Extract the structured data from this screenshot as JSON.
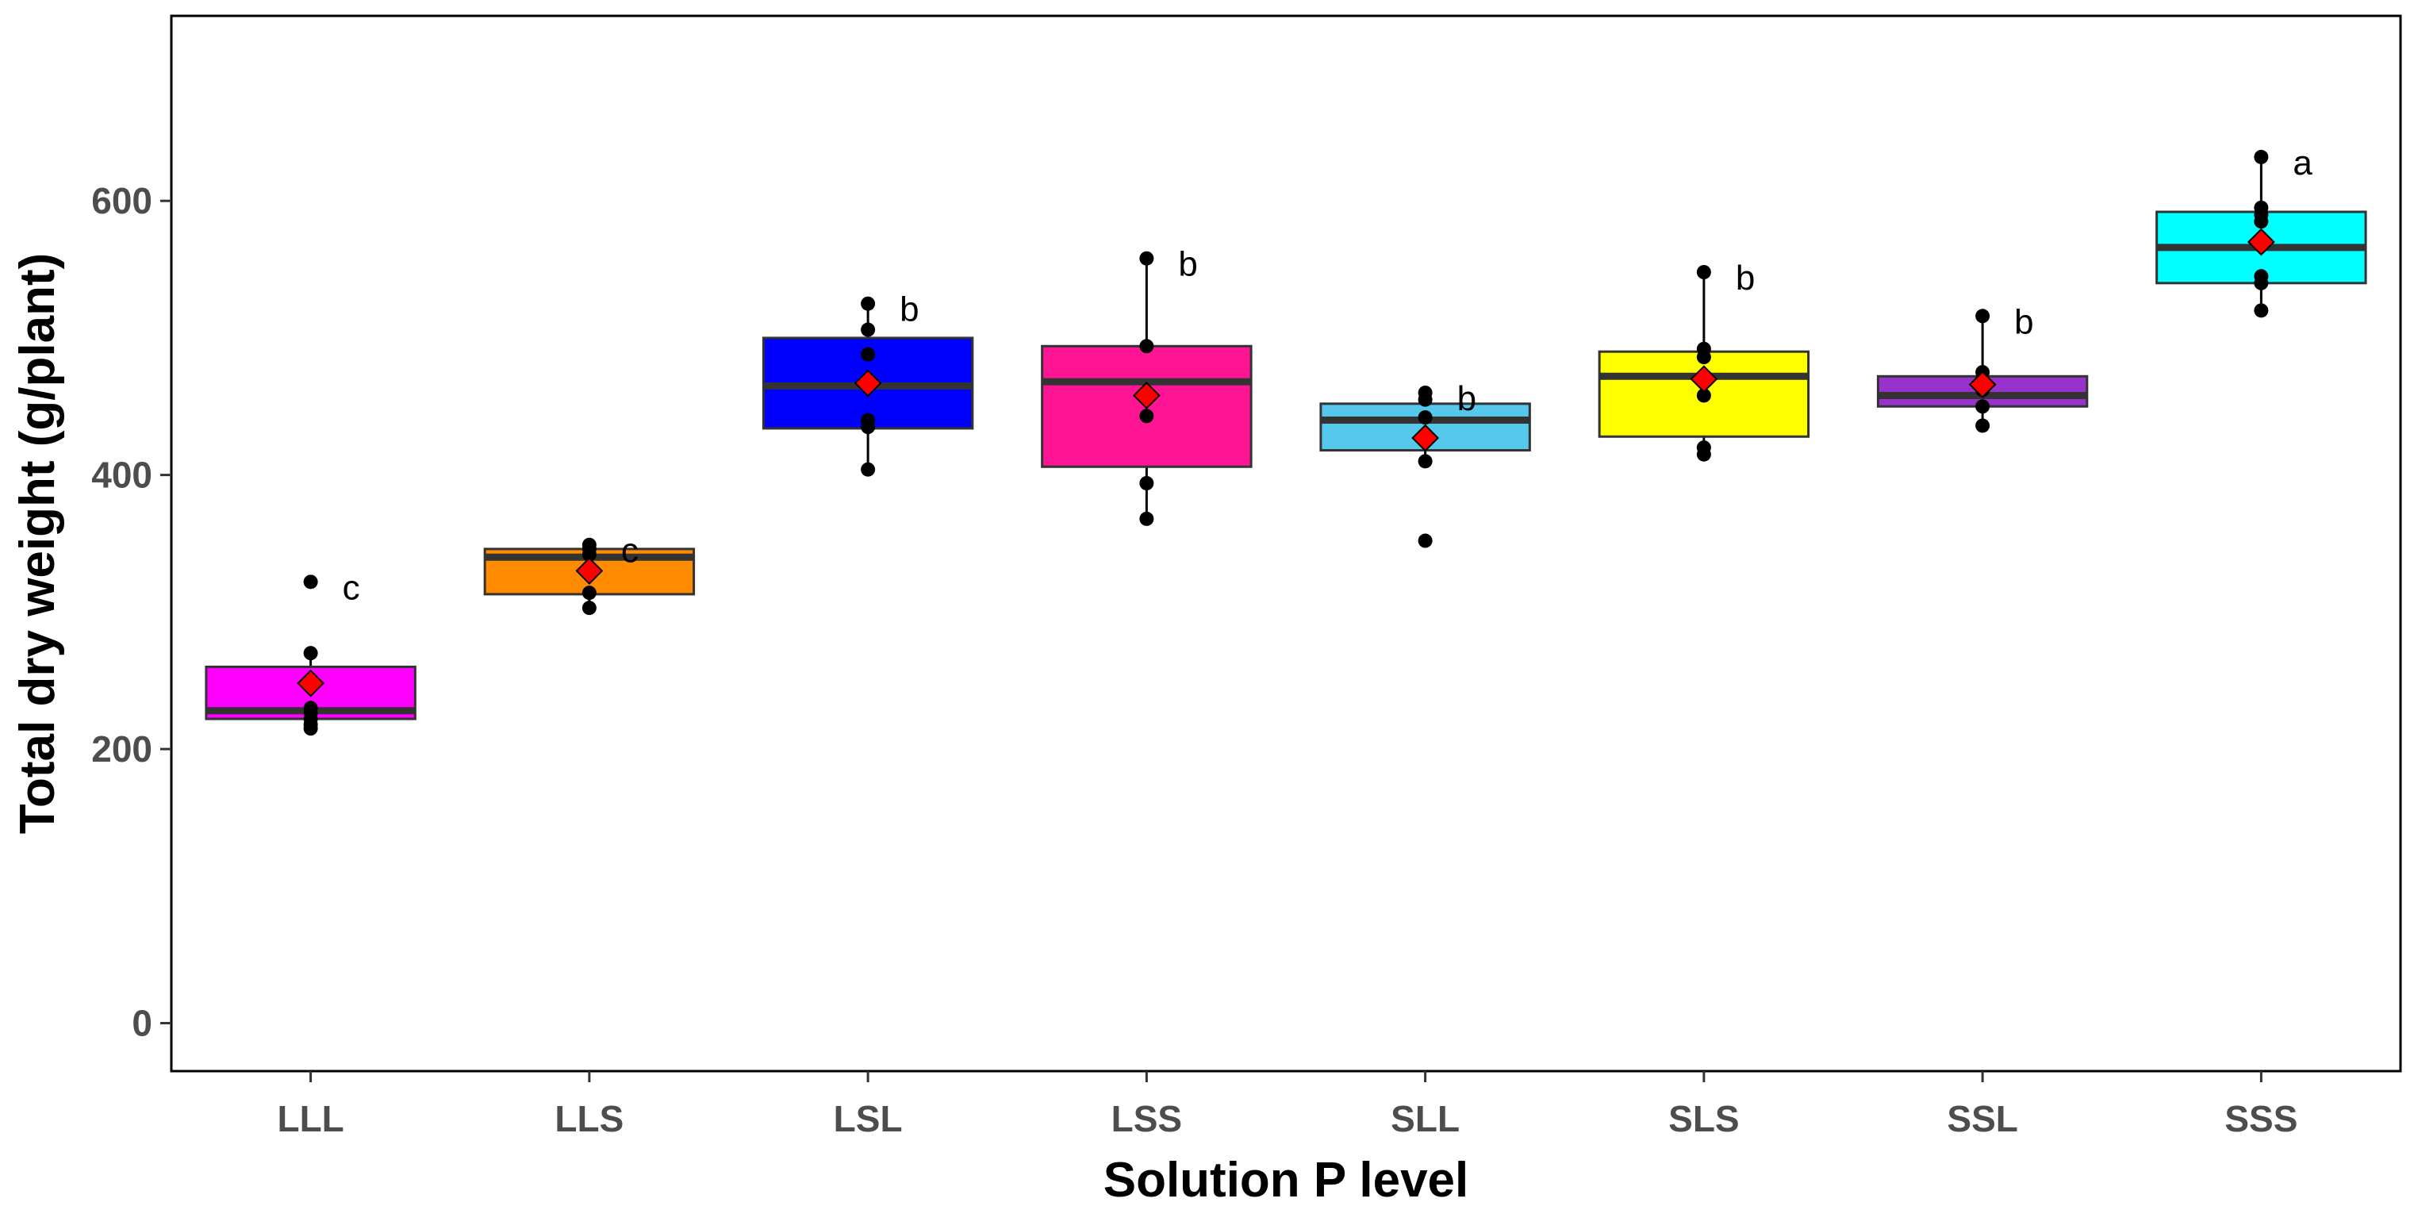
{
  "chart_data": {
    "type": "box",
    "title": "",
    "xlabel": "Solution P level",
    "ylabel": "Total dry weight (g/plant)",
    "ylim": [
      -35,
      735
    ],
    "yticks": [
      0,
      200,
      400,
      600
    ],
    "ytick_labels": [
      "0",
      "200",
      "400",
      "600"
    ],
    "grid": false,
    "categories": [
      "LLL",
      "LLS",
      "LSL",
      "LSS",
      "SLL",
      "SLS",
      "SSL",
      "SSS"
    ],
    "series": [
      {
        "name": "LLL",
        "color": "#ff00ff",
        "q1": 222,
        "median": 228,
        "q3": 260,
        "whisker_low": 215,
        "whisker_high": 270,
        "mean": 248,
        "points": [
          215,
          218,
          222,
          226,
          230,
          270,
          322
        ],
        "letter": "c"
      },
      {
        "name": "LLS",
        "color": "#ff8c00",
        "q1": 313,
        "median": 340,
        "q3": 346,
        "whisker_low": 303,
        "whisker_high": 349,
        "mean": 330,
        "points": [
          303,
          314,
          330,
          342,
          346,
          349
        ],
        "letter": "c"
      },
      {
        "name": "LSL",
        "color": "#0000ff",
        "q1": 434,
        "median": 465,
        "q3": 500,
        "whisker_low": 404,
        "whisker_high": 525,
        "mean": 467,
        "points": [
          404,
          435,
          440,
          488,
          506,
          525
        ],
        "letter": "b"
      },
      {
        "name": "LSS",
        "color": "#ff1493",
        "q1": 406,
        "median": 468,
        "q3": 494,
        "whisker_low": 368,
        "whisker_high": 558,
        "mean": 458,
        "points": [
          368,
          394,
          443,
          494,
          558
        ],
        "letter": "b"
      },
      {
        "name": "SLL",
        "color": "#56c8eb",
        "q1": 418,
        "median": 440,
        "q3": 452,
        "whisker_low": 410,
        "whisker_high": 460,
        "mean": 427,
        "points": [
          352,
          410,
          442,
          455,
          460
        ],
        "letter": "b"
      },
      {
        "name": "SLS",
        "color": "#ffff00",
        "q1": 428,
        "median": 472,
        "q3": 490,
        "whisker_low": 415,
        "whisker_high": 548,
        "mean": 470,
        "points": [
          415,
          420,
          458,
          486,
          492,
          548
        ],
        "letter": "b"
      },
      {
        "name": "SSL",
        "color": "#9932cc",
        "q1": 450,
        "median": 458,
        "q3": 472,
        "whisker_low": 436,
        "whisker_high": 516,
        "mean": 466,
        "points": [
          436,
          450,
          462,
          470,
          475,
          516
        ],
        "letter": "b"
      },
      {
        "name": "SSS",
        "color": "#00ffff",
        "q1": 540,
        "median": 566,
        "q3": 592,
        "whisker_low": 520,
        "whisker_high": 632,
        "mean": 570,
        "points": [
          520,
          540,
          545,
          585,
          590,
          595,
          632
        ],
        "letter": "a"
      }
    ]
  },
  "colors": {
    "mean_marker": "#ff0000",
    "median_line": "#333333",
    "point": "#000000",
    "frame": "#000000"
  }
}
